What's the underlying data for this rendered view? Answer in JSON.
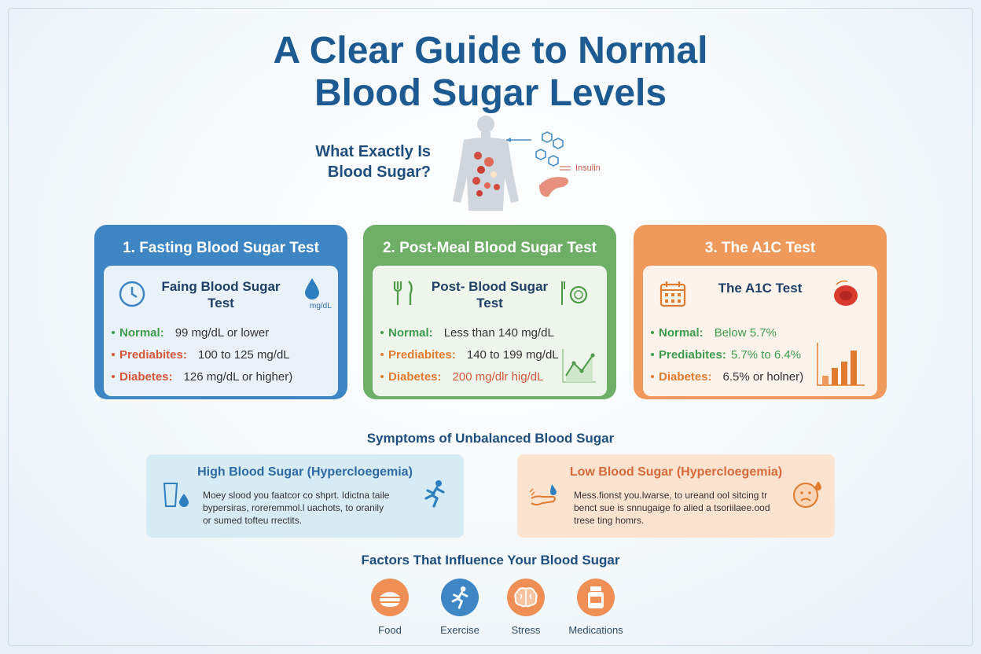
{
  "title_line1": "A Clear Guide to Normal",
  "title_line2": "Blood Sugar Levels",
  "hero": {
    "question_line1": "What Exactly Is",
    "question_line2": "Blood Sugar?",
    "insulin_label": "Insulin"
  },
  "tests": [
    {
      "header": "1. Fasting Blood Sugar Test",
      "sub_line1": "Faing Blood Sugar",
      "sub_line2": "Test",
      "unit": "mg/dL",
      "rows": [
        {
          "label": "Normal:",
          "value": "99 mg/dL or lower"
        },
        {
          "label": "Prediabites:",
          "value": "100 to 125 mg/dL"
        },
        {
          "label": "Diabetes:",
          "value": "126 mg/dL or higher)"
        }
      ]
    },
    {
      "header": "2. Post-Meal Blood Sugar Test",
      "sub_line1": "Post- Blood Sugar",
      "sub_line2": "Test",
      "rows": [
        {
          "label": "Normal:",
          "value": "Less than 140 mg/dL"
        },
        {
          "label": "Prediabites:",
          "value": "140 to 199 mg/dL"
        },
        {
          "label": "Diabetes:",
          "value": "200 mg/dlr hig/dL"
        }
      ]
    },
    {
      "header": "3. The A1C Test",
      "sub_line1": "The A1C Test",
      "rows": [
        {
          "label": "Normal:",
          "value": "Below 5.7%"
        },
        {
          "label": "Prediabites:",
          "value": "5.7% to 6.4%"
        },
        {
          "label": "Diabetes:",
          "value": "6.5% or holner)"
        }
      ]
    }
  ],
  "symptoms": {
    "heading": "Symptoms of Unbalanced Blood Sugar",
    "high": {
      "title": "High Blood Sugar (Hypercloegemia)",
      "line1": "Moey slood you faatcor co shprt. Idictna taile",
      "line2": "bypersiras, roreremmol.l uachots, to oranily",
      "line3": "or sumed tofteu rrectits."
    },
    "low": {
      "title": "Low Blood Sugar (Hypercloegemia)",
      "line1": "Mess.fionst you.lwarse, to ureand ool sitcing tr",
      "line2": "benct sue is snnugaige fo alied a tsoriilaee.ood",
      "line3": "trese ting homrs."
    }
  },
  "factors": {
    "heading": "Factors That Influence Your Blood Sugar",
    "items": [
      {
        "label": "Food",
        "icon": "food-icon",
        "color": "#ef8f55"
      },
      {
        "label": "Exercise",
        "icon": "runner-icon",
        "color": "#3f86c4"
      },
      {
        "label": "Stress",
        "icon": "brain-icon",
        "color": "#ef8f55"
      },
      {
        "label": "Medications",
        "icon": "medicine-bottle-icon",
        "color": "#ef8f55"
      }
    ]
  }
}
